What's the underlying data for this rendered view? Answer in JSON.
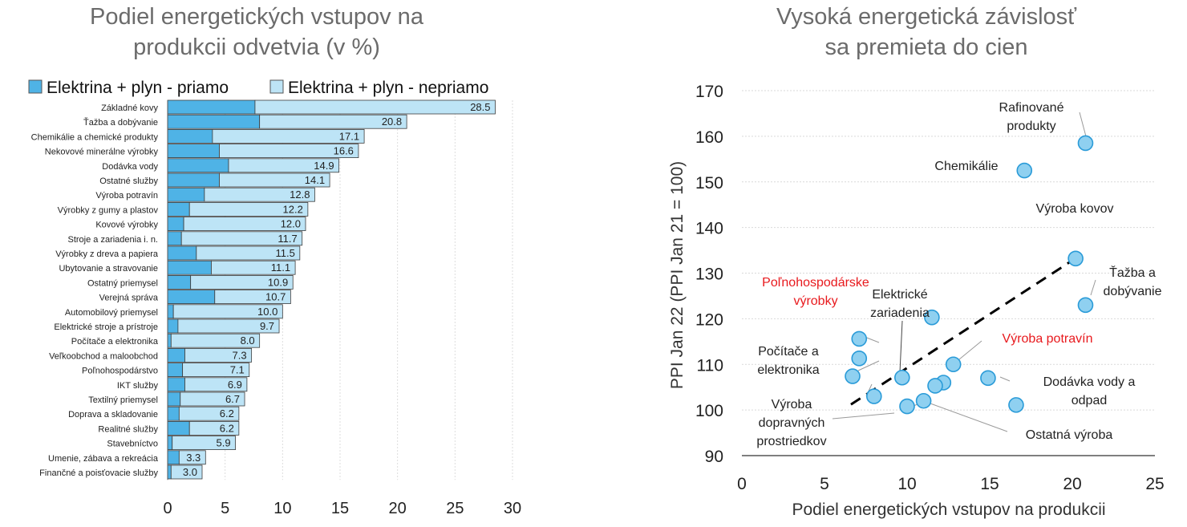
{
  "chart_data": [
    {
      "type": "bar",
      "orientation": "horizontal",
      "stacked": true,
      "title": [
        "Podiel energetických vstupov na",
        "produkcii odvetvia (v %)"
      ],
      "legend": [
        {
          "name": "Elektrina + plyn - priamo",
          "color": "#4fb3e6"
        },
        {
          "name": "Elektrina + plyn - nepriamo",
          "color": "#bde4f6"
        }
      ],
      "legend_position": "top",
      "xlim": [
        0,
        30
      ],
      "xticks": [
        "0",
        "5",
        "10",
        "15",
        "20",
        "25",
        "30"
      ],
      "grid": true,
      "categories": [
        "Základné kovy",
        "Ťažba a dobývanie",
        "Chemikálie a chemické produkty",
        "Nekovové minerálne výrobky",
        "Dodávka vody",
        "Ostatné služby",
        "Výroba potravín",
        "Výrobky z gumy a plastov",
        "Kovové výrobky",
        "Stroje a zariadenia i. n.",
        "Výrobky z dreva a papiera",
        "Ubytovanie a stravovanie",
        "Ostatný priemysel",
        "Verejná správa",
        "Automobilový priemysel",
        "Elektrické stroje a prístroje",
        "Počítače a elektronika",
        "Veľkoobchod a maloobchod",
        "Poľnohospodárstvo",
        "IKT služby",
        "Textilný priemysel",
        "Doprava a skladovanie",
        "Realitné služby",
        "Stavebníctvo",
        "Umenie, zábava a rekreácia",
        "Finančné a poisťovacie služby"
      ],
      "series": [
        {
          "name": "Elektrina + plyn - priamo",
          "values": [
            7.6,
            8.0,
            3.9,
            4.5,
            5.3,
            4.5,
            3.2,
            1.9,
            1.4,
            1.2,
            2.5,
            3.8,
            2.0,
            4.1,
            0.5,
            0.9,
            0.3,
            1.5,
            1.3,
            1.5,
            1.1,
            1.0,
            1.9,
            0.4,
            1.0,
            0.3
          ]
        },
        {
          "name": "Elektrina + plyn - nepriamo",
          "values": [
            20.9,
            12.8,
            13.2,
            12.1,
            9.6,
            9.6,
            9.6,
            10.3,
            10.6,
            10.5,
            9.0,
            7.3,
            8.9,
            6.6,
            9.5,
            8.8,
            7.7,
            5.8,
            5.8,
            5.4,
            5.6,
            5.2,
            4.3,
            5.5,
            2.3,
            2.7
          ]
        }
      ],
      "totals": [
        "28.5",
        "20.8",
        "17.1",
        "16.6",
        "14.9",
        "14.1",
        "12.8",
        "12.2",
        "12.0",
        "11.7",
        "11.5",
        "11.1",
        "10.9",
        "10.7",
        "10.0",
        "9.7",
        "8.0",
        "7.3",
        "7.1",
        "6.9",
        "6.7",
        "6.2",
        "6.2",
        "5.9",
        "3.3",
        "3.0"
      ]
    },
    {
      "type": "scatter",
      "title": [
        "Vysoká energetická závislosť",
        "sa premieta do cien"
      ],
      "xlabel": "Podiel energetických vstupov na produkcii",
      "ylabel": "PPI Jan 22 (PPI Jan 21 = 100)",
      "xlim": [
        0,
        25
      ],
      "ylim": [
        90,
        170
      ],
      "xticks": [
        "0",
        "5",
        "10",
        "15",
        "20",
        "25"
      ],
      "yticks": [
        "90",
        "100",
        "110",
        "120",
        "130",
        "140",
        "150",
        "160",
        "170"
      ],
      "grid": true,
      "point_color": "#8fd0f0",
      "highlight_color": "#e8191d",
      "points": [
        {
          "x": 20.8,
          "y": 158.5
        },
        {
          "x": 17.1,
          "y": 152.5
        },
        {
          "x": 20.2,
          "y": 133.2
        },
        {
          "x": 20.8,
          "y": 123.0
        },
        {
          "x": 11.5,
          "y": 120.3
        },
        {
          "x": 7.1,
          "y": 115.6
        },
        {
          "x": 7.1,
          "y": 111.3
        },
        {
          "x": 12.8,
          "y": 110.0
        },
        {
          "x": 6.7,
          "y": 107.4
        },
        {
          "x": 9.7,
          "y": 107.1
        },
        {
          "x": 14.9,
          "y": 107.0
        },
        {
          "x": 12.2,
          "y": 106.0
        },
        {
          "x": 11.7,
          "y": 105.3
        },
        {
          "x": 8.0,
          "y": 103.0
        },
        {
          "x": 11.0,
          "y": 102.0
        },
        {
          "x": 10.0,
          "y": 100.8
        },
        {
          "x": 16.6,
          "y": 101.1
        }
      ],
      "annotations": [
        {
          "lines": [
            "Rafinované",
            "produkty"
          ],
          "highlight": false
        },
        {
          "lines": [
            "Chemikálie"
          ],
          "highlight": false
        },
        {
          "lines": [
            "Výroba kovov"
          ],
          "highlight": false
        },
        {
          "lines": [
            "Ťažba a",
            "dobývanie"
          ],
          "highlight": false
        },
        {
          "lines": [
            "Poľnohospodárske",
            "výrobky"
          ],
          "highlight": true
        },
        {
          "lines": [
            "Elektrické",
            "zariadenia"
          ],
          "highlight": false
        },
        {
          "lines": [
            "Počítače a",
            "elektronika"
          ],
          "highlight": false
        },
        {
          "lines": [
            "Výroba potravín"
          ],
          "highlight": true
        },
        {
          "lines": [
            "Dodávka vody a",
            "odpad"
          ],
          "highlight": false
        },
        {
          "lines": [
            "Výroba",
            "dopravných",
            "prostriedkov"
          ],
          "highlight": false
        },
        {
          "lines": [
            "Ostatná výroba"
          ],
          "highlight": false
        }
      ],
      "trendline": {
        "style": "dashed",
        "color": "#000000",
        "from": {
          "x": 6.6,
          "y": 101.2
        },
        "to": {
          "x": 20.6,
          "y": 134.2
        }
      }
    }
  ]
}
